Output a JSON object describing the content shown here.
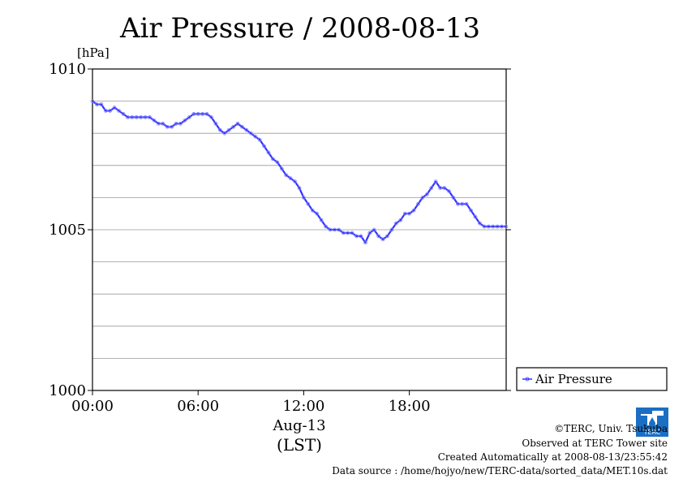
{
  "chart_data": {
    "type": "line",
    "title": "Air Pressure / 2008-08-13",
    "ylabel": "[hPa]",
    "xlabel_line1": "Aug-13",
    "xlabel_line2": "(LST)",
    "x_unit": "hours (LST)",
    "xlim": [
      0,
      23.5
    ],
    "ylim": [
      1000,
      1010
    ],
    "x_ticks": [
      {
        "value": 0,
        "label": "00:00"
      },
      {
        "value": 6,
        "label": "06:00"
      },
      {
        "value": 12,
        "label": "12:00"
      },
      {
        "value": 18,
        "label": "18:00"
      }
    ],
    "y_ticks": [
      {
        "value": 1000,
        "label": "1000"
      },
      {
        "value": 1005,
        "label": "1005"
      },
      {
        "value": 1010,
        "label": "1010"
      }
    ],
    "y_gridlines": [
      1001,
      1002,
      1003,
      1004,
      1005,
      1006,
      1007,
      1008,
      1009
    ],
    "grid": true,
    "legend_position": "bottom-right",
    "series": [
      {
        "name": "Air Pressure",
        "color": "#3333ff",
        "x": [
          0,
          0.25,
          0.5,
          0.75,
          1.0,
          1.25,
          1.5,
          1.75,
          2.0,
          2.25,
          2.5,
          2.75,
          3.0,
          3.25,
          3.5,
          3.75,
          4.0,
          4.25,
          4.5,
          4.75,
          5.0,
          5.25,
          5.5,
          5.75,
          6.0,
          6.25,
          6.5,
          6.75,
          7.0,
          7.25,
          7.5,
          7.75,
          8.0,
          8.25,
          8.5,
          8.75,
          9.0,
          9.25,
          9.5,
          9.75,
          10.0,
          10.25,
          10.5,
          10.75,
          11.0,
          11.25,
          11.5,
          11.75,
          12.0,
          12.25,
          12.5,
          12.75,
          13.0,
          13.25,
          13.5,
          13.75,
          14.0,
          14.25,
          14.5,
          14.75,
          15.0,
          15.25,
          15.5,
          15.75,
          16.0,
          16.25,
          16.5,
          16.75,
          17.0,
          17.25,
          17.5,
          17.75,
          18.0,
          18.25,
          18.5,
          18.75,
          19.0,
          19.25,
          19.5,
          19.75,
          20.0,
          20.25,
          20.5,
          20.75,
          21.0,
          21.25,
          21.5,
          21.75,
          22.0,
          22.25,
          22.5,
          22.75,
          23.0,
          23.25,
          23.5
        ],
        "values": [
          1009.0,
          1008.9,
          1008.9,
          1008.7,
          1008.7,
          1008.8,
          1008.7,
          1008.6,
          1008.5,
          1008.5,
          1008.5,
          1008.5,
          1008.5,
          1008.5,
          1008.4,
          1008.3,
          1008.3,
          1008.2,
          1008.2,
          1008.3,
          1008.3,
          1008.4,
          1008.5,
          1008.6,
          1008.6,
          1008.6,
          1008.6,
          1008.5,
          1008.3,
          1008.1,
          1008.0,
          1008.1,
          1008.2,
          1008.3,
          1008.2,
          1008.1,
          1008.0,
          1007.9,
          1007.8,
          1007.6,
          1007.4,
          1007.2,
          1007.1,
          1006.9,
          1006.7,
          1006.6,
          1006.5,
          1006.3,
          1006.0,
          1005.8,
          1005.6,
          1005.5,
          1005.3,
          1005.1,
          1005.0,
          1005.0,
          1005.0,
          1004.9,
          1004.9,
          1004.9,
          1004.8,
          1004.8,
          1004.6,
          1004.9,
          1005.0,
          1004.8,
          1004.7,
          1004.8,
          1005.0,
          1005.2,
          1005.3,
          1005.5,
          1005.5,
          1005.6,
          1005.8,
          1006.0,
          1006.1,
          1006.3,
          1006.5,
          1006.3,
          1006.3,
          1006.2,
          1006.0,
          1005.8,
          1005.8,
          1005.8,
          1005.6,
          1005.4,
          1005.2,
          1005.1,
          1005.1,
          1005.1,
          1005.1,
          1005.1,
          1005.1
        ]
      }
    ]
  },
  "credits": {
    "copyright": "©TERC, Univ. Tsukuba",
    "observed": "Observed at TERC Tower site",
    "created": "Created Automatically at 2008-08-13/23:55:42",
    "source": "Data source : /home/hojyo/new/TERC-data/sorted_data/MET.10s.dat",
    "logo_text": "TERC"
  }
}
